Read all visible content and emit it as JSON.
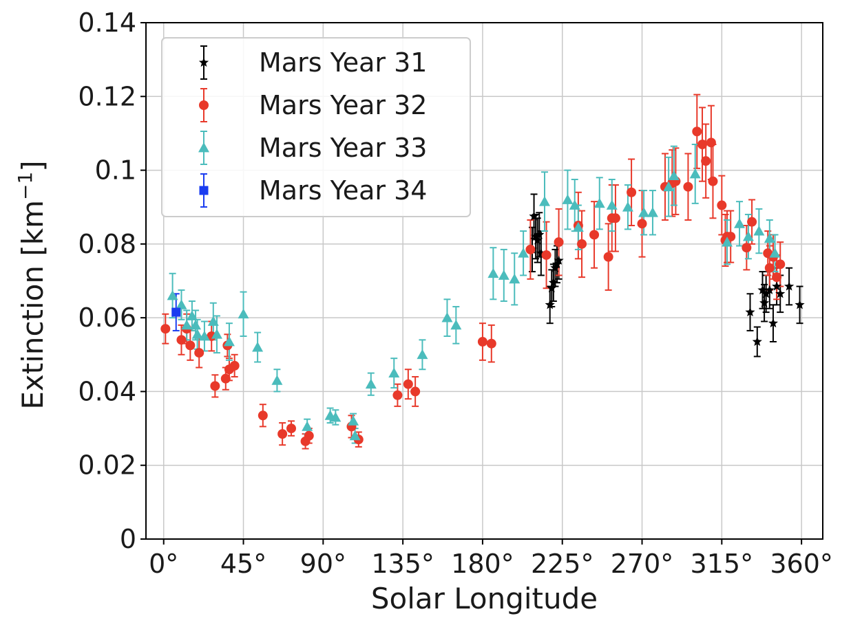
{
  "chart_data": {
    "type": "scatter",
    "xlabel": "Solar Longitude",
    "ylabel": "Extinction [km",
    "ylabel_sup": "−1",
    "ylabel_suffix": "]",
    "xlim": [
      -10,
      372
    ],
    "ylim": [
      0,
      0.14
    ],
    "xticks": [
      0,
      45,
      90,
      135,
      180,
      225,
      270,
      315,
      360
    ],
    "xtick_labels": [
      "0°",
      "45°",
      "90°",
      "135°",
      "180°",
      "225°",
      "270°",
      "315°",
      "360°"
    ],
    "yticks": [
      0,
      0.02,
      0.04,
      0.06,
      0.08,
      0.1,
      0.12,
      0.14
    ],
    "ytick_labels": [
      "0",
      "0.02",
      "0.04",
      "0.06",
      "0.08",
      "0.1",
      "0.12",
      "0.14"
    ],
    "grid": true,
    "legend_position": "top-left",
    "series": [
      {
        "name": "Mars Year 31",
        "marker": "star",
        "color": "#000000",
        "x": [
          208,
          209,
          210,
          211,
          212,
          213,
          218,
          219,
          220,
          221,
          222,
          223,
          331,
          335,
          338,
          339,
          340,
          342,
          344,
          346,
          348,
          353,
          359
        ],
        "y": [
          0.0785,
          0.0875,
          0.082,
          0.081,
          0.0825,
          0.0775,
          0.0635,
          0.068,
          0.0695,
          0.0735,
          0.0745,
          0.0755,
          0.0615,
          0.0535,
          0.0675,
          0.064,
          0.0665,
          0.0675,
          0.0585,
          0.0685,
          0.0665,
          0.0685,
          0.0635
        ],
        "err": [
          0.006,
          0.006,
          0.006,
          0.006,
          0.006,
          0.006,
          0.005,
          0.005,
          0.005,
          0.005,
          0.005,
          0.005,
          0.005,
          0.004,
          0.005,
          0.005,
          0.005,
          0.005,
          0.005,
          0.005,
          0.005,
          0.005,
          0.005
        ]
      },
      {
        "name": "Mars Year 32",
        "marker": "circle",
        "color": "#e8392a",
        "x": [
          1,
          10,
          13,
          15,
          20,
          27,
          29,
          35,
          36,
          37,
          40,
          56,
          67,
          72,
          80,
          82,
          106,
          110,
          132,
          138,
          142,
          180,
          185,
          207,
          216,
          223,
          234,
          236,
          243,
          251,
          253,
          255,
          264,
          270,
          283,
          287,
          289,
          296,
          301,
          304,
          306,
          309,
          310,
          315,
          317,
          318,
          320,
          329,
          332,
          341,
          342,
          344,
          346,
          348
        ],
        "y": [
          0.057,
          0.054,
          0.057,
          0.0525,
          0.0505,
          0.055,
          0.0415,
          0.0435,
          0.0525,
          0.046,
          0.047,
          0.0335,
          0.0285,
          0.03,
          0.0265,
          0.028,
          0.0305,
          0.027,
          0.039,
          0.042,
          0.04,
          0.0535,
          0.053,
          0.0785,
          0.077,
          0.0805,
          0.085,
          0.08,
          0.0825,
          0.0765,
          0.087,
          0.087,
          0.094,
          0.0855,
          0.0955,
          0.0965,
          0.097,
          0.0955,
          0.1105,
          0.107,
          0.1025,
          0.1075,
          0.097,
          0.0905,
          0.081,
          0.082,
          0.082,
          0.079,
          0.086,
          0.0775,
          0.0735,
          0.0765,
          0.071,
          0.0745
        ],
        "err": [
          0.004,
          0.004,
          0.004,
          0.004,
          0.004,
          0.004,
          0.003,
          0.003,
          0.003,
          0.003,
          0.003,
          0.003,
          0.003,
          0.002,
          0.002,
          0.002,
          0.003,
          0.002,
          0.003,
          0.004,
          0.004,
          0.005,
          0.005,
          0.008,
          0.009,
          0.009,
          0.009,
          0.009,
          0.009,
          0.009,
          0.009,
          0.009,
          0.009,
          0.009,
          0.009,
          0.009,
          0.009,
          0.009,
          0.01,
          0.01,
          0.01,
          0.01,
          0.01,
          0.008,
          0.007,
          0.007,
          0.007,
          0.006,
          0.006,
          0.006,
          0.006,
          0.006,
          0.006,
          0.006
        ]
      },
      {
        "name": "Mars Year 33",
        "marker": "triangle",
        "color": "#4bbcbc",
        "x": [
          5,
          10,
          13,
          16,
          18,
          19,
          23,
          28,
          30,
          37,
          45,
          53,
          64,
          81,
          94,
          97,
          107,
          108,
          117,
          130,
          146,
          160,
          165,
          186,
          192,
          198,
          203,
          215,
          228,
          232,
          234,
          246,
          253,
          262,
          271,
          276,
          285,
          288,
          300,
          318,
          325,
          330,
          336,
          342,
          345
        ],
        "y": [
          0.066,
          0.0635,
          0.058,
          0.0605,
          0.058,
          0.0555,
          0.055,
          0.059,
          0.0555,
          0.0535,
          0.061,
          0.052,
          0.043,
          0.0305,
          0.0335,
          0.033,
          0.032,
          0.028,
          0.042,
          0.045,
          0.05,
          0.06,
          0.058,
          0.072,
          0.0715,
          0.0705,
          0.0775,
          0.0915,
          0.092,
          0.0905,
          0.0845,
          0.091,
          0.0905,
          0.09,
          0.0885,
          0.0885,
          0.0955,
          0.0985,
          0.099,
          0.0805,
          0.0855,
          0.082,
          0.0835,
          0.0815,
          0.0775
        ],
        "err": [
          0.006,
          0.004,
          0.004,
          0.004,
          0.004,
          0.004,
          0.004,
          0.005,
          0.005,
          0.005,
          0.006,
          0.004,
          0.003,
          0.002,
          0.002,
          0.002,
          0.002,
          0.002,
          0.003,
          0.004,
          0.004,
          0.005,
          0.005,
          0.007,
          0.007,
          0.007,
          0.006,
          0.008,
          0.008,
          0.007,
          0.006,
          0.007,
          0.007,
          0.006,
          0.006,
          0.006,
          0.008,
          0.008,
          0.008,
          0.006,
          0.006,
          0.006,
          0.006,
          0.005,
          0.005
        ]
      },
      {
        "name": "Mars Year 34",
        "marker": "square",
        "color": "#1a3cf0",
        "x": [
          7
        ],
        "y": [
          0.0615
        ],
        "err": [
          0.005
        ]
      }
    ]
  }
}
